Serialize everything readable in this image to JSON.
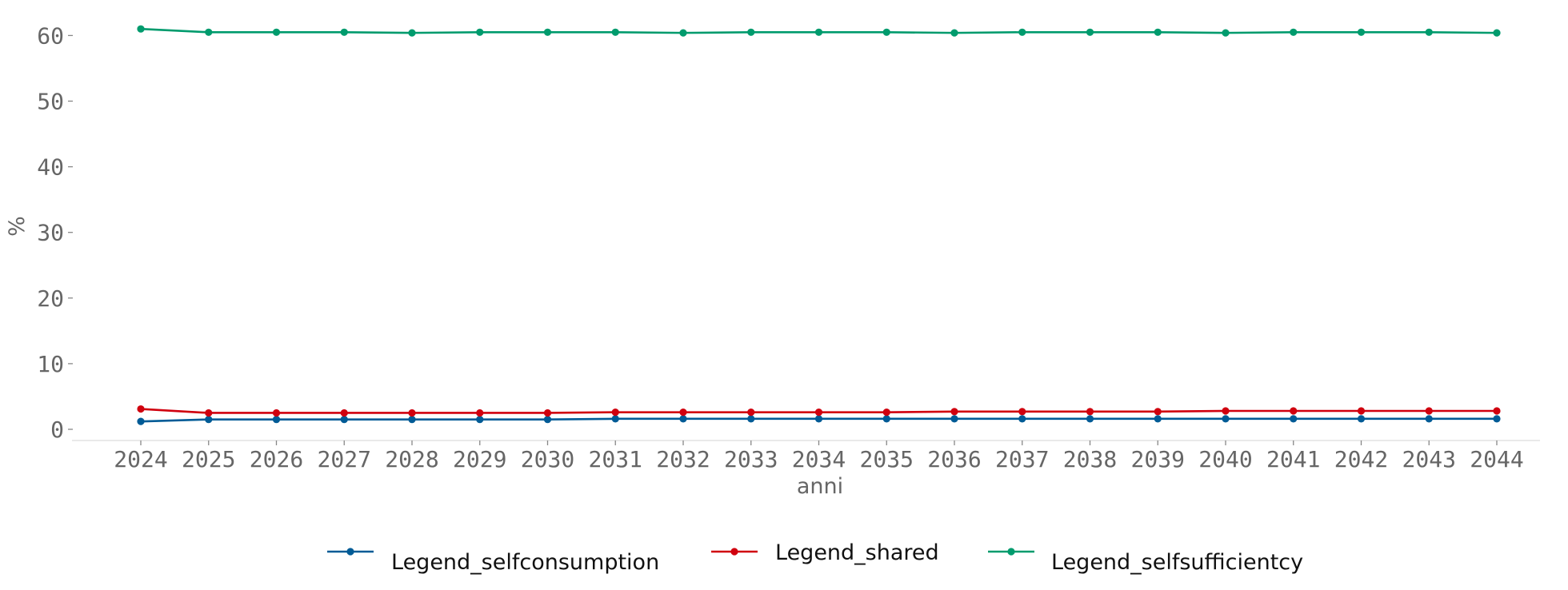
{
  "chart_data": {
    "type": "line",
    "title": "",
    "xlabel": "anni",
    "ylabel": "%",
    "x": [
      "2024",
      "2025",
      "2026",
      "2027",
      "2028",
      "2029",
      "2030",
      "2031",
      "2032",
      "2033",
      "2034",
      "2035",
      "2036",
      "2037",
      "2038",
      "2039",
      "2040",
      "2041",
      "2042",
      "2043",
      "2044"
    ],
    "ylim": [
      -1.7,
      62
    ],
    "yticks": [
      0,
      10,
      20,
      30,
      40,
      50,
      60
    ],
    "grid": false,
    "legend_position": "bottom-center",
    "series": [
      {
        "name": "Legend_selfconsumption",
        "color": "#005b96",
        "values": [
          1.2,
          1.5,
          1.5,
          1.5,
          1.5,
          1.5,
          1.5,
          1.6,
          1.6,
          1.6,
          1.6,
          1.6,
          1.6,
          1.6,
          1.6,
          1.6,
          1.6,
          1.6,
          1.6,
          1.6,
          1.6
        ]
      },
      {
        "name": "Legend_shared",
        "color": "#d0000e",
        "values": [
          3.1,
          2.5,
          2.5,
          2.5,
          2.5,
          2.5,
          2.5,
          2.6,
          2.6,
          2.6,
          2.6,
          2.6,
          2.7,
          2.7,
          2.7,
          2.7,
          2.8,
          2.8,
          2.8,
          2.8,
          2.8
        ]
      },
      {
        "name": "Legend_selfsufficientcy",
        "color": "#009b6d",
        "values": [
          61.0,
          60.5,
          60.5,
          60.5,
          60.4,
          60.5,
          60.5,
          60.5,
          60.4,
          60.5,
          60.5,
          60.5,
          60.4,
          60.5,
          60.5,
          60.5,
          60.4,
          60.5,
          60.5,
          60.5,
          60.4
        ]
      }
    ]
  }
}
